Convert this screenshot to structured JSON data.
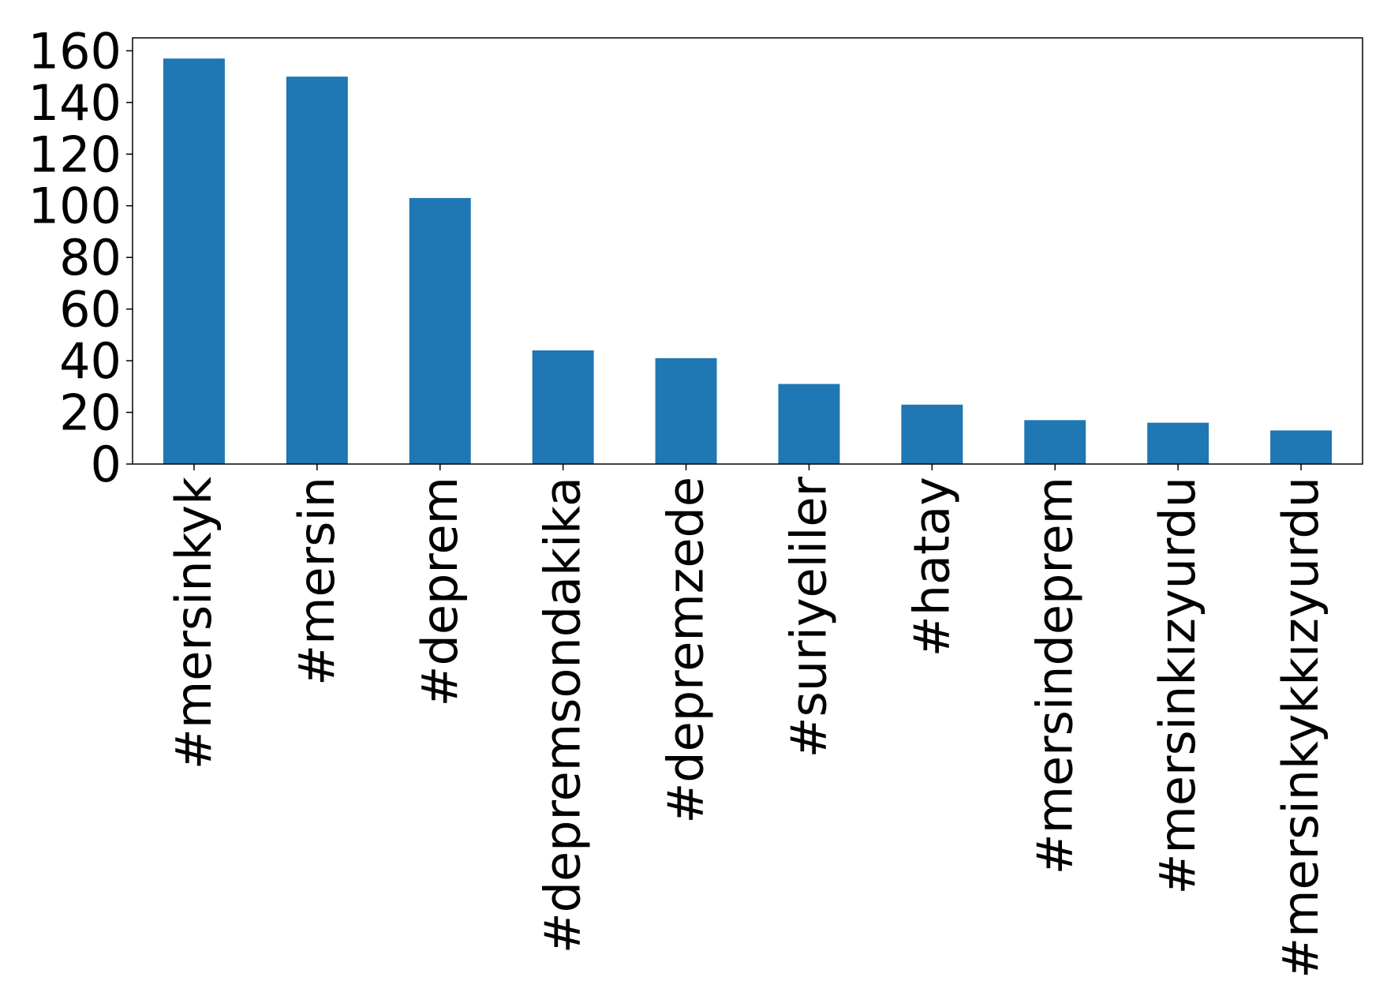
{
  "chart_data": {
    "type": "bar",
    "title": "",
    "xlabel": "",
    "ylabel": "",
    "categories": [
      "#mersinkyk",
      "#mersin",
      "#deprem",
      "#depremsondakika",
      "#depremzede",
      "#suriyeliler",
      "#hatay",
      "#mersindeprem",
      "#mersinkızyurdu",
      "#mersinkykkızyurdu"
    ],
    "values": [
      157,
      150,
      103,
      44,
      41,
      31,
      23,
      17,
      16,
      13
    ],
    "ylim": [
      0,
      165
    ],
    "yticks": [
      0,
      20,
      40,
      60,
      80,
      100,
      120,
      140,
      160
    ],
    "ytick_labels": [
      "0",
      "20",
      "40",
      "60",
      "80",
      "100",
      "120",
      "140",
      "160"
    ],
    "grid": false,
    "legend": "none",
    "bar_color": "#1f77b4"
  }
}
